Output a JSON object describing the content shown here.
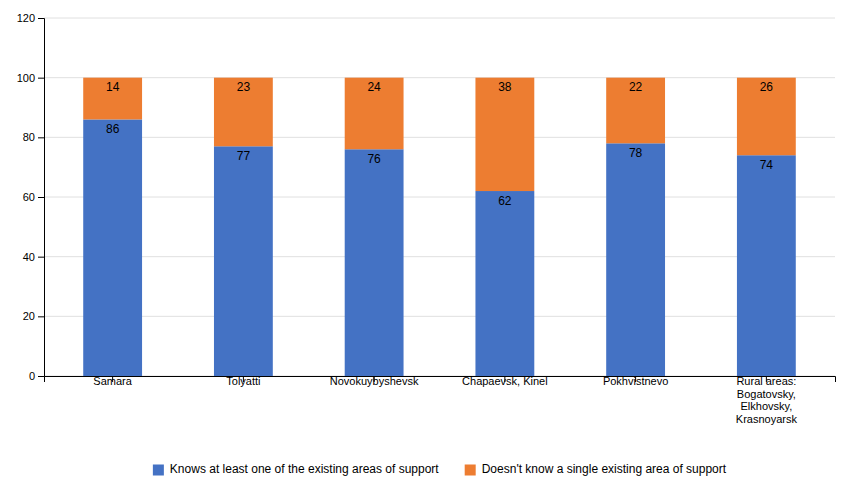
{
  "chart_data": {
    "type": "bar",
    "stacked": true,
    "categories": [
      "Samara",
      "Tolyatti",
      "Novokuybyshevsk",
      "Chapaevsk, Kinel",
      "Pokhvistnevo",
      "Rural areas:\nBogatovsky,\nElkhovsky,\nKrasnoyarsk"
    ],
    "series": [
      {
        "name": "Knows at least one of the existing areas of support",
        "color": "#4472c4",
        "values": [
          86,
          77,
          76,
          62,
          78,
          74
        ]
      },
      {
        "name": "Doesn't know a single existing area of support",
        "color": "#ed7d31",
        "values": [
          14,
          23,
          24,
          38,
          22,
          26
        ]
      }
    ],
    "ylim": [
      0,
      120
    ],
    "yticks": [
      0,
      20,
      40,
      60,
      80,
      100,
      120
    ],
    "grid": true,
    "data_labels": true,
    "legend": "bottom"
  }
}
